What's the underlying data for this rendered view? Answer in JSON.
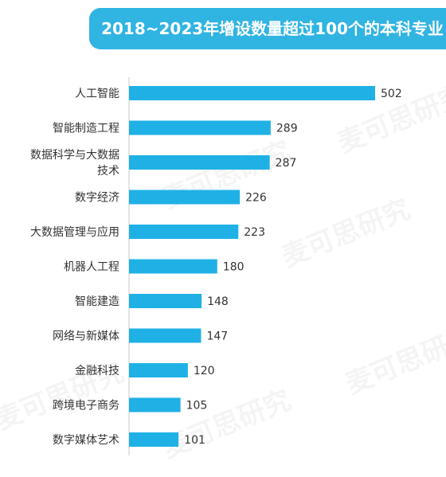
{
  "title": "2018~2023年增设数量超过100个的本科专业",
  "watermark": "麦可思研究",
  "colors": {
    "bar": "#1fb1e6",
    "title_bg": "#30b4e2",
    "axis": "#c8c8c8"
  },
  "chart_data": {
    "type": "bar",
    "orientation": "horizontal",
    "title": "2018~2023年增设数量超过100个的本科专业",
    "categories": [
      "人工智能",
      "智能制造工程",
      "数据科学与大数据技术",
      "数字经济",
      "大数据管理与应用",
      "机器人工程",
      "智能建造",
      "网络与新媒体",
      "金融科技",
      "跨境电子商务",
      "数字媒体艺术"
    ],
    "category_lines": [
      [
        "人工智能"
      ],
      [
        "智能制造工程"
      ],
      [
        "数据科学与大数据",
        "技术"
      ],
      [
        "数字经济"
      ],
      [
        "大数据管理与应用"
      ],
      [
        "机器人工程"
      ],
      [
        "智能建造"
      ],
      [
        "网络与新媒体"
      ],
      [
        "金融科技"
      ],
      [
        "跨境电子商务"
      ],
      [
        "数字媒体艺术"
      ]
    ],
    "values": [
      502,
      289,
      287,
      226,
      223,
      180,
      148,
      147,
      120,
      105,
      101
    ],
    "xlim": [
      0,
      502
    ],
    "data_labels": true,
    "grid": false,
    "legend": false
  }
}
